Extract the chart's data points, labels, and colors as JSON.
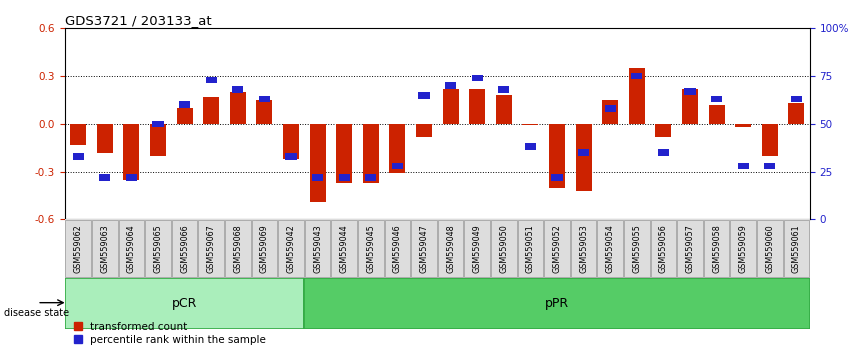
{
  "title": "GDS3721 / 203133_at",
  "samples": [
    "GSM559062",
    "GSM559063",
    "GSM559064",
    "GSM559065",
    "GSM559066",
    "GSM559067",
    "GSM559068",
    "GSM559069",
    "GSM559042",
    "GSM559043",
    "GSM559044",
    "GSM559045",
    "GSM559046",
    "GSM559047",
    "GSM559048",
    "GSM559049",
    "GSM559050",
    "GSM559051",
    "GSM559052",
    "GSM559053",
    "GSM559054",
    "GSM559055",
    "GSM559056",
    "GSM559057",
    "GSM559058",
    "GSM559059",
    "GSM559060",
    "GSM559061"
  ],
  "red_values": [
    -0.13,
    -0.18,
    -0.35,
    -0.2,
    0.1,
    0.17,
    0.2,
    0.15,
    -0.22,
    -0.49,
    -0.37,
    -0.37,
    -0.31,
    -0.08,
    0.22,
    0.22,
    0.18,
    -0.01,
    -0.4,
    -0.42,
    0.15,
    0.35,
    -0.08,
    0.22,
    0.12,
    -0.02,
    -0.2,
    0.13
  ],
  "blue_values": [
    33,
    22,
    22,
    50,
    60,
    73,
    68,
    63,
    33,
    22,
    22,
    22,
    28,
    65,
    70,
    74,
    68,
    38,
    22,
    35,
    58,
    75,
    35,
    67,
    63,
    28,
    28,
    63
  ],
  "n_pCR": 9,
  "bar_color": "#cc2200",
  "dot_color": "#2222cc",
  "pCR_color": "#aaeebb",
  "pPR_color": "#55cc66",
  "group_border_color": "#33aa44",
  "xlabel_bg": "#dddddd",
  "ylim": [
    -0.6,
    0.6
  ],
  "y2lim": [
    0,
    100
  ],
  "yticks_left": [
    -0.6,
    -0.3,
    0.0,
    0.3,
    0.6
  ],
  "yticks_right": [
    0,
    25,
    50,
    75,
    100
  ],
  "ytick_right_labels": [
    "0",
    "25",
    "50",
    "75",
    "100%"
  ],
  "hlines": [
    -0.3,
    0.0,
    0.3
  ]
}
